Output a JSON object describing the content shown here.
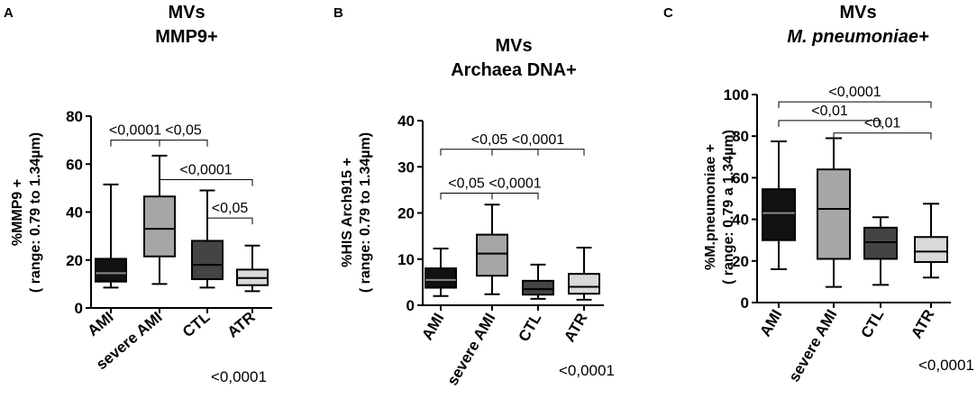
{
  "figure": {
    "panels": [
      {
        "letter": "A",
        "title_line1": "MVs",
        "title_line2": "MMP9+",
        "title_italic": false,
        "overall_p": "<0,0001"
      },
      {
        "letter": "B",
        "title_line1": "MVs",
        "title_line2": "Archaea DNA+",
        "title_italic": false,
        "overall_p": "<0,0001"
      },
      {
        "letter": "C",
        "title_line1": "MVs",
        "title_line2": "M. pneumoniae+",
        "title_italic": true,
        "overall_p": "<0,0001"
      }
    ]
  },
  "chart_data": [
    {
      "type": "box",
      "title": "MVs MMP9+",
      "ylabel": "%MMP9 + ( range: 0.79 to 1.34µm)",
      "ylim": [
        0,
        80
      ],
      "yticks": [
        0,
        20,
        40,
        60,
        80
      ],
      "categories": [
        "AMI",
        "severe AMI",
        "CTL",
        "ATR"
      ],
      "boxes": [
        {
          "min": 8.5,
          "q1": 11,
          "median": 14.5,
          "q3": 20.5,
          "max": 51.5,
          "fill": "#111111",
          "median_color": "#888888"
        },
        {
          "min": 10,
          "q1": 21.5,
          "median": 33,
          "q3": 46.5,
          "max": 63.5,
          "fill": "#a6a6a6",
          "median_color": "#000000"
        },
        {
          "min": 8.5,
          "q1": 12,
          "median": 18,
          "q3": 28,
          "max": 49,
          "fill": "#444444",
          "median_color": "#000000"
        },
        {
          "min": 7,
          "q1": 9.5,
          "median": 12.5,
          "q3": 16,
          "max": 26,
          "fill": "#d9d9d9",
          "median_color": "#000000"
        }
      ],
      "comparisons": [
        {
          "from": 0,
          "to": 1,
          "y": 70,
          "label": "<0,0001"
        },
        {
          "from": 1,
          "to": 2,
          "y": 70,
          "label": "<0,05"
        },
        {
          "from": 1,
          "to": 3,
          "y": 53.5,
          "label": "<0,0001"
        },
        {
          "from": 2,
          "to": 3,
          "y": 37.5,
          "label": "<0,05"
        }
      ],
      "overall_p": "<0,0001"
    },
    {
      "type": "box",
      "title": "MVs Archaea DNA+",
      "ylabel": "%HIS Arch915 + ( range: 0.79 to 1.34µm)",
      "ylim": [
        0,
        40
      ],
      "yticks": [
        0,
        10,
        20,
        30,
        40
      ],
      "categories": [
        "AMI",
        "severe AMI",
        "CTL",
        "ATR"
      ],
      "boxes": [
        {
          "min": 2,
          "q1": 3.8,
          "median": 5.5,
          "q3": 8,
          "max": 12.3,
          "fill": "#111111",
          "median_color": "#888888"
        },
        {
          "min": 2.4,
          "q1": 6.4,
          "median": 11.2,
          "q3": 15.3,
          "max": 21.8,
          "fill": "#a6a6a6",
          "median_color": "#000000"
        },
        {
          "min": 1.4,
          "q1": 2.3,
          "median": 3.5,
          "q3": 5.3,
          "max": 8.8,
          "fill": "#444444",
          "median_color": "#000000"
        },
        {
          "min": 1.2,
          "q1": 2.5,
          "median": 4,
          "q3": 6.8,
          "max": 12.5,
          "fill": "#d9d9d9",
          "median_color": "#000000"
        }
      ],
      "comparisons": [
        {
          "from": 0,
          "to": 2,
          "y": 33.8,
          "label": "<0,05"
        },
        {
          "from": 0,
          "to": 1,
          "y": 24.3,
          "label": "<0,05"
        },
        {
          "from": 1,
          "to": 2,
          "y": 24.3,
          "label": "<0,0001"
        },
        {
          "from": 1,
          "to": 3,
          "y": 34.5,
          "label": "<0,0001",
          "y_override": 33.8
        }
      ],
      "overall_p": "<0,0001"
    },
    {
      "type": "box",
      "title": "MVs M. pneumoniae+",
      "ylabel": "%M.pneumoniae + ( range: 0.79 a 1.34µm)",
      "ylim": [
        0,
        100
      ],
      "yticks": [
        0,
        20,
        40,
        60,
        80,
        100
      ],
      "categories": [
        "AMI",
        "severe AMI",
        "CTL",
        "ATR"
      ],
      "boxes": [
        {
          "min": 16,
          "q1": 30,
          "median": 43,
          "q3": 54.5,
          "max": 77.5,
          "fill": "#111111",
          "median_color": "#888888"
        },
        {
          "min": 7.5,
          "q1": 21,
          "median": 45,
          "q3": 64,
          "max": 79,
          "fill": "#a6a6a6",
          "median_color": "#000000"
        },
        {
          "min": 8.5,
          "q1": 21,
          "median": 29,
          "q3": 36,
          "max": 41,
          "fill": "#444444",
          "median_color": "#000000"
        },
        {
          "min": 12,
          "q1": 19.5,
          "median": 24.5,
          "q3": 31.5,
          "max": 47.5,
          "fill": "#d9d9d9",
          "median_color": "#000000"
        }
      ],
      "comparisons": [
        {
          "from": 0,
          "to": 3,
          "y": 96.5,
          "label": "<0,0001"
        },
        {
          "from": 0,
          "to": 2,
          "y": 87.5,
          "label": "<0,01"
        },
        {
          "from": 1,
          "to": 3,
          "y": 81.5,
          "label": "<0,01"
        }
      ],
      "overall_p": "<0,0001"
    }
  ]
}
